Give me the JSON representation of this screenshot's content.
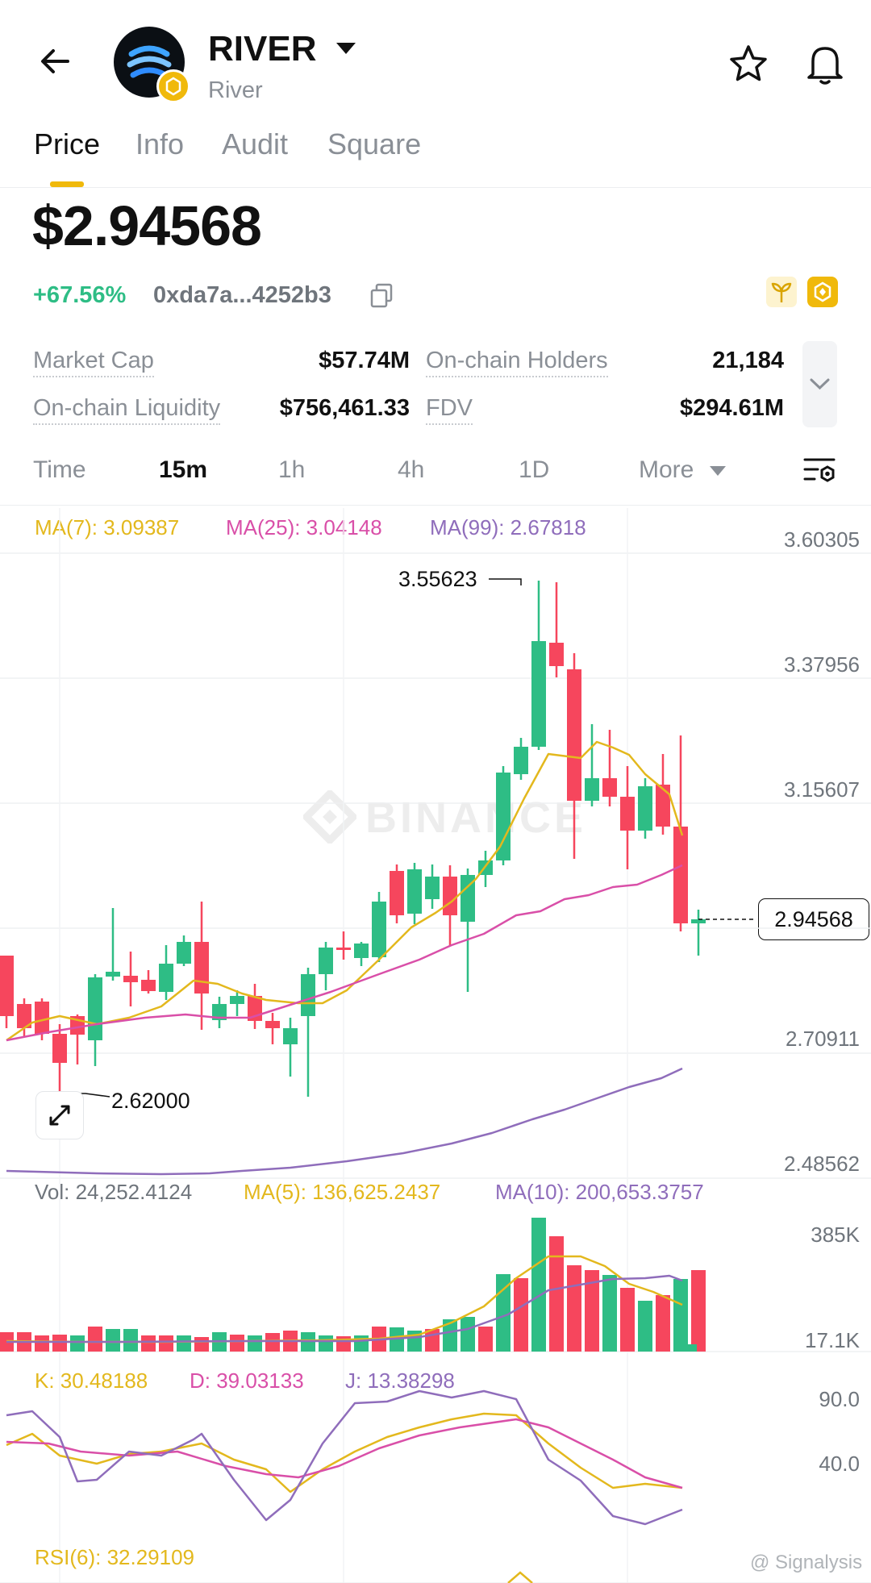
{
  "header": {
    "token_symbol": "RIVER",
    "token_name": "River",
    "back_icon": "arrow-left-icon",
    "star_icon": "star-icon",
    "bell_icon": "bell-icon"
  },
  "tabs": [
    {
      "label": "Price",
      "active": true
    },
    {
      "label": "Info",
      "active": false
    },
    {
      "label": "Audit",
      "active": false
    },
    {
      "label": "Square",
      "active": false
    }
  ],
  "price": {
    "value": "$2.94568",
    "change": "+67.56%",
    "contract": "0xda7a...4252b3"
  },
  "stats": {
    "market_cap_label": "Market Cap",
    "market_cap_value": "$57.74M",
    "holders_label": "On-chain Holders",
    "holders_value": "21,184",
    "liquidity_label": "On-chain Liquidity",
    "liquidity_value": "$756,461.33",
    "fdv_label": "FDV",
    "fdv_value": "$294.61M"
  },
  "timeframes": [
    {
      "label": "Time",
      "active": false
    },
    {
      "label": "15m",
      "active": true
    },
    {
      "label": "1h",
      "active": false
    },
    {
      "label": "4h",
      "active": false
    },
    {
      "label": "1D",
      "active": false
    },
    {
      "label": "More",
      "active": false
    }
  ],
  "chart": {
    "ma7": "MA(7): 3.09387",
    "ma25": "MA(25): 3.04148",
    "ma99": "MA(99): 2.67818",
    "y_ticks": [
      "3.60305",
      "3.37956",
      "3.15607",
      "2.94568",
      "2.70911",
      "2.48562"
    ],
    "high_label": "3.55623",
    "low_label": "2.62000",
    "current_price": "2.94568",
    "watermark": "BINANCE"
  },
  "volume": {
    "vol": "Vol: 24,252.4124",
    "ma5": "MA(5): 136,625.2437",
    "ma10": "MA(10): 200,653.3757",
    "y_ticks": [
      "385K",
      "17.1K"
    ]
  },
  "kdj": {
    "k": "K: 30.48188",
    "d": "D: 39.03133",
    "j": "J: 13.38298",
    "y_ticks": [
      "90.0",
      "40.0"
    ]
  },
  "rsi": {
    "label": "RSI(6): 32.29109"
  },
  "credit": "@ Signalysis",
  "colors": {
    "up": "#2ebd85",
    "down": "#f6465d",
    "ma7": "#e3b81d",
    "ma25": "#d94fa8",
    "ma99": "#8f6dbb",
    "accent": "#f0b90b"
  }
}
